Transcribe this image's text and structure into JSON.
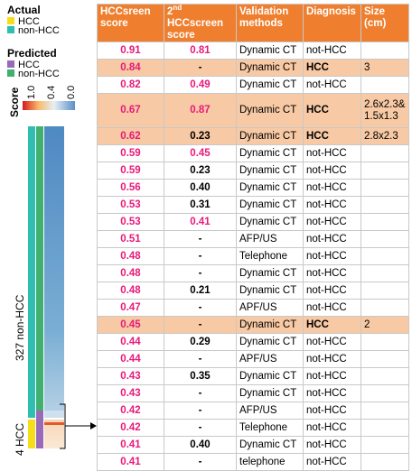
{
  "legend": {
    "actual_title": "Actual",
    "actual_items": [
      {
        "label": "HCC",
        "color": "#f5dd1a"
      },
      {
        "label": "non-HCC",
        "color": "#2fbfb2"
      }
    ],
    "predicted_title": "Predicted",
    "predicted_items": [
      {
        "label": "HCC",
        "color": "#9a6ab8"
      },
      {
        "label": "non-HCC",
        "color": "#3fb070"
      }
    ],
    "score_title": "Score",
    "score_ticks": [
      "1.0",
      "0.4",
      "0.0"
    ],
    "score_gradient": [
      "#d7191c",
      "#f9b96b",
      "#e6f0f5",
      "#5a8fc8"
    ]
  },
  "group_labels": {
    "non_hcc": "327 non-HCC",
    "hcc": "4 HCC"
  },
  "colors": {
    "header_bg": "#ef7f2e",
    "highlight_row": "#f7c9a4",
    "pink_score": "#e8197a"
  },
  "table": {
    "headers": {
      "c1_line1": "HCCsreen",
      "c1_line2": "score",
      "c2_prefix": "2",
      "c2_sup": "nd",
      "c2_rest": " HCCscreen",
      "c2_line2": "score",
      "c3_line1": "Validation",
      "c3_line2": "methods",
      "c4": "Diagnosis",
      "c5_line1": "Size",
      "c5_line2": "(cm)"
    },
    "rows": [
      {
        "score": "0.91",
        "second": "0.81",
        "second_color": "pink",
        "method": "Dynamic CT",
        "diagnosis": "not-HCC",
        "size": "",
        "hl": false
      },
      {
        "score": "0.84",
        "second": "-",
        "second_color": "black",
        "method": "Dynamic CT",
        "diagnosis": "HCC",
        "size": "3",
        "hl": true
      },
      {
        "score": "0.82",
        "second": "0.49",
        "second_color": "pink",
        "method": "Dynamic CT",
        "diagnosis": "not-HCC",
        "size": "",
        "hl": false
      },
      {
        "score": "0.67",
        "second": "0.87",
        "second_color": "pink",
        "method": "Dynamic CT",
        "diagnosis": "HCC",
        "size": "2.6x2.3&",
        "size2": "1.5x1.3",
        "hl": true,
        "tall": true
      },
      {
        "score": "0.62",
        "second": "0.23",
        "second_color": "black",
        "method": "Dynamic CT",
        "diagnosis": "HCC",
        "size": "2.8x2.3",
        "hl": true
      },
      {
        "score": "0.59",
        "second": "0.45",
        "second_color": "pink",
        "method": "Dynamic CT",
        "diagnosis": "not-HCC",
        "size": "",
        "hl": false
      },
      {
        "score": "0.59",
        "second": "0.23",
        "second_color": "black",
        "method": "Dynamic CT",
        "diagnosis": "not-HCC",
        "size": "",
        "hl": false
      },
      {
        "score": "0.56",
        "second": "0.40",
        "second_color": "black",
        "method": "Dynamic CT",
        "diagnosis": "not-HCC",
        "size": "",
        "hl": false
      },
      {
        "score": "0.53",
        "second": "0.31",
        "second_color": "black",
        "method": "Dynamic CT",
        "diagnosis": "not-HCC",
        "size": "",
        "hl": false
      },
      {
        "score": "0.53",
        "second": "0.41",
        "second_color": "pink",
        "method": "Dynamic CT",
        "diagnosis": "not-HCC",
        "size": "",
        "hl": false
      },
      {
        "score": "0.51",
        "second": "-",
        "second_color": "black",
        "method": "AFP/US",
        "diagnosis": "not-HCC",
        "size": "",
        "hl": false
      },
      {
        "score": "0.48",
        "second": "-",
        "second_color": "black",
        "method": "Telephone",
        "diagnosis": "not-HCC",
        "size": "",
        "hl": false
      },
      {
        "score": "0.48",
        "second": "-",
        "second_color": "black",
        "method": "Dynamic CT",
        "diagnosis": "not-HCC",
        "size": "",
        "hl": false
      },
      {
        "score": "0.48",
        "second": "0.21",
        "second_color": "black",
        "method": "Dynamic CT",
        "diagnosis": "not-HCC",
        "size": "",
        "hl": false
      },
      {
        "score": "0.47",
        "second": "-",
        "second_color": "black",
        "method": "APF/US",
        "diagnosis": "not-HCC",
        "size": "",
        "hl": false
      },
      {
        "score": "0.45",
        "second": "-",
        "second_color": "black",
        "method": "Dynamic CT",
        "diagnosis": "HCC",
        "size": "2",
        "hl": true
      },
      {
        "score": "0.44",
        "second": "0.29",
        "second_color": "black",
        "method": "Dynamic CT",
        "diagnosis": "not-HCC",
        "size": "",
        "hl": false
      },
      {
        "score": "0.44",
        "second": "-",
        "second_color": "black",
        "method": "APF/US",
        "diagnosis": "not-HCC",
        "size": "",
        "hl": false
      },
      {
        "score": "0.43",
        "second": "0.35",
        "second_color": "black",
        "method": "Dynamic CT",
        "diagnosis": "not-HCC",
        "size": "",
        "hl": false
      },
      {
        "score": "0.43",
        "second": "-",
        "second_color": "black",
        "method": "Dynamic CT",
        "diagnosis": "not-HCC",
        "size": "",
        "hl": false
      },
      {
        "score": "0.42",
        "second": "-",
        "second_color": "black",
        "method": "AFP/US",
        "diagnosis": "not-HCC",
        "size": "",
        "hl": false
      },
      {
        "score": "0.42",
        "second": "-",
        "second_color": "black",
        "method": "Telephone",
        "diagnosis": "not-HCC",
        "size": "",
        "hl": false
      },
      {
        "score": "0.41",
        "second": "0.40",
        "second_color": "black",
        "method": "Dynamic CT",
        "diagnosis": "not-HCC",
        "size": "",
        "hl": false
      },
      {
        "score": "0.41",
        "second": "-",
        "second_color": "black",
        "method": "telephone",
        "diagnosis": "not-HCC",
        "size": "",
        "hl": false
      }
    ]
  },
  "chart_data": {
    "type": "heatmap",
    "columns": [
      "Actual",
      "Predicted",
      "Score"
    ],
    "groups": [
      {
        "name": "327 non-HCC",
        "count": 327,
        "actual": "non-HCC"
      },
      {
        "name": "4 HCC",
        "count": 4,
        "actual": "HCC"
      }
    ],
    "score_range": [
      0.0,
      1.0
    ]
  }
}
